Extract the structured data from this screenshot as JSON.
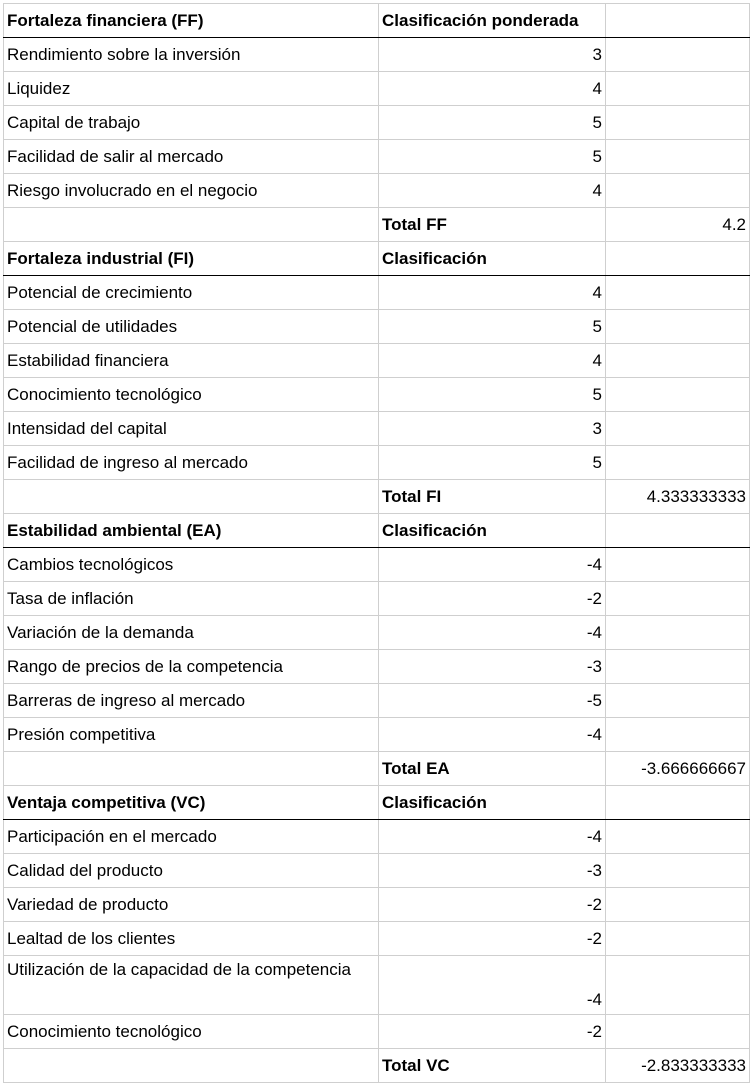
{
  "sections": [
    {
      "header": "Fortaleza financiera (FF)",
      "column": "Clasificación ponderada",
      "rows": [
        {
          "label": "Rendimiento sobre la inversión",
          "value": "3"
        },
        {
          "label": "Liquidez",
          "value": "4"
        },
        {
          "label": "Capital de trabajo",
          "value": "5"
        },
        {
          "label": "Facilidad de salir al mercado",
          "value": "5"
        },
        {
          "label": "Riesgo involucrado en el negocio",
          "value": "4"
        }
      ],
      "total_label": "Total FF",
      "total_value": "4.2"
    },
    {
      "header": "Fortaleza industrial (FI)",
      "column": "Clasificación",
      "rows": [
        {
          "label": "Potencial de crecimiento",
          "value": "4"
        },
        {
          "label": "Potencial de utilidades",
          "value": "5"
        },
        {
          "label": "Estabilidad financiera",
          "value": "4"
        },
        {
          "label": "Conocimiento tecnológico",
          "value": "5"
        },
        {
          "label": "Intensidad del capital",
          "value": "3"
        },
        {
          "label": "Facilidad de ingreso al mercado",
          "value": "5"
        }
      ],
      "total_label": "Total FI",
      "total_value": "4.333333333"
    },
    {
      "header": "Estabilidad ambiental (EA)",
      "column": "Clasificación",
      "rows": [
        {
          "label": "Cambios tecnológicos",
          "value": "-4"
        },
        {
          "label": "Tasa de inflación",
          "value": "-2"
        },
        {
          "label": "Variación de la demanda",
          "value": "-4"
        },
        {
          "label": "Rango de precios de la competencia",
          "value": "-3"
        },
        {
          "label": "Barreras de ingreso al mercado",
          "value": "-5"
        },
        {
          "label": "Presión competitiva",
          "value": "-4"
        }
      ],
      "total_label": "Total EA",
      "total_value": "-3.666666667"
    },
    {
      "header": "Ventaja competitiva (VC)",
      "column": "Clasificación",
      "rows": [
        {
          "label": "Participación en el mercado",
          "value": "-4"
        },
        {
          "label": "Calidad del producto",
          "value": "-3"
        },
        {
          "label": "Variedad de producto",
          "value": "-2"
        },
        {
          "label": "Lealtad de los clientes",
          "value": "-2"
        },
        {
          "label": "Utilización de la capacidad de la competencia",
          "value": "-4",
          "tall": true
        },
        {
          "label": "Conocimiento tecnológico",
          "value": "-2"
        }
      ],
      "total_label": "Total VC",
      "total_value": "-2.833333333"
    }
  ]
}
